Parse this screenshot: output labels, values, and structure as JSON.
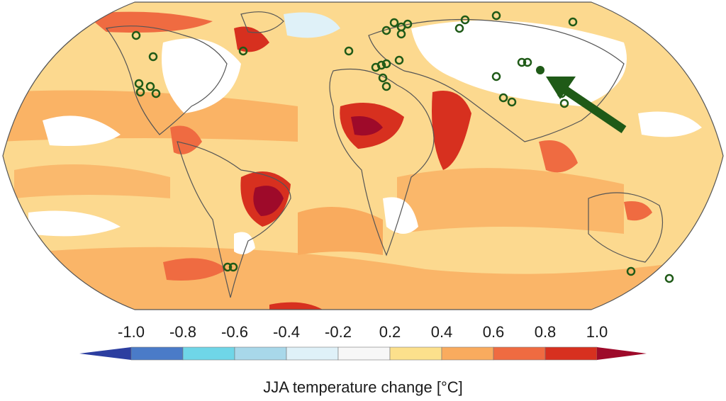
{
  "map": {
    "projection": "world-robinson",
    "marker_color": "#1f5a17",
    "arrow_color": "#1f5a17",
    "ocean_default": "#fcd98f",
    "land_outline": "#555555"
  },
  "legend": {
    "title": "JJA temperature change [°C]",
    "ticks": [
      "-1.0",
      "-0.8",
      "-0.6",
      "-0.4",
      "-0.2",
      "0.2",
      "0.4",
      "0.6",
      "0.8",
      "1.0"
    ],
    "colors": [
      "#2c3ea0",
      "#4a7bc8",
      "#6fd6e8",
      "#a8d8ea",
      "#dff1f8",
      "#f7f7f7",
      "#fce08c",
      "#f9ab5e",
      "#ef6b41",
      "#d7301f",
      "#9e0a2a"
    ]
  }
}
